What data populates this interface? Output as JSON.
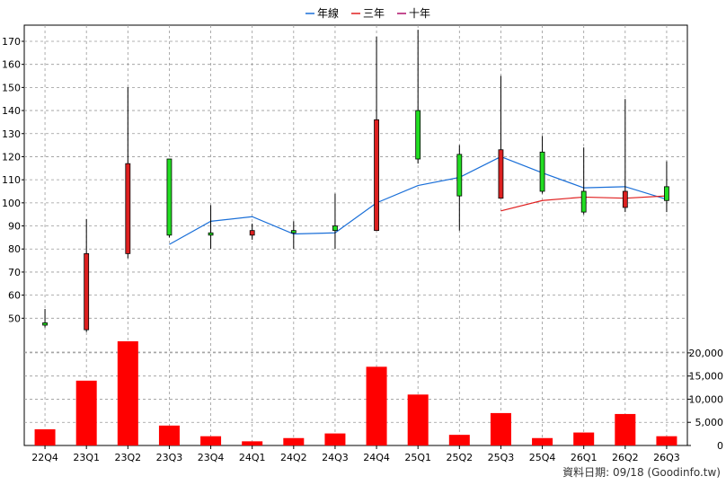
{
  "legend": [
    {
      "label": "年線",
      "color": "#1a6fd8"
    },
    {
      "label": "三年",
      "color": "#e02020"
    },
    {
      "label": "十年",
      "color": "#b0106a"
    }
  ],
  "footer": "資料日期: 09/18 (Goodinfo.tw)",
  "colors": {
    "up": "#22dd22",
    "down": "#dd2020",
    "volume": "#ff0000",
    "grid": "#999999"
  },
  "chart_data": [
    {
      "type": "candlestick",
      "categories": [
        "22Q4",
        "23Q1",
        "23Q2",
        "23Q3",
        "23Q4",
        "24Q1",
        "24Q2",
        "24Q3",
        "24Q4",
        "25Q1",
        "25Q2",
        "25Q3",
        "25Q4",
        "26Q1",
        "26Q2",
        "26Q3"
      ],
      "ylim": [
        40,
        177
      ],
      "yticks": [
        50,
        60,
        70,
        80,
        90,
        100,
        110,
        120,
        130,
        140,
        150,
        160,
        170
      ],
      "ohlc": [
        {
          "open": 47,
          "high": 54,
          "low": 46,
          "close": 48
        },
        {
          "open": 78,
          "high": 93,
          "low": 44,
          "close": 45
        },
        {
          "open": 117,
          "high": 150,
          "low": 76,
          "close": 78
        },
        {
          "open": 86,
          "high": 119,
          "low": 85,
          "close": 119
        },
        {
          "open": 86,
          "high": 99,
          "low": 80,
          "close": 87
        },
        {
          "open": 88,
          "high": 91,
          "low": 84,
          "close": 86
        },
        {
          "open": 87,
          "high": 92,
          "low": 80,
          "close": 88
        },
        {
          "open": 88,
          "high": 104,
          "low": 80,
          "close": 90
        },
        {
          "open": 136,
          "high": 172,
          "low": 88,
          "close": 88
        },
        {
          "open": 119,
          "high": 175,
          "low": 117,
          "close": 140
        },
        {
          "open": 103,
          "high": 125,
          "low": 88,
          "close": 121
        },
        {
          "open": 123,
          "high": 155,
          "low": 102,
          "close": 102
        },
        {
          "open": 105,
          "high": 129,
          "low": 104,
          "close": 122
        },
        {
          "open": 96,
          "high": 124,
          "low": 95,
          "close": 105
        },
        {
          "open": 105,
          "high": 145,
          "low": 96,
          "close": 98
        },
        {
          "open": 101,
          "high": 118,
          "low": 96,
          "close": 107
        }
      ],
      "series": [
        {
          "name": "年線",
          "values": [
            null,
            null,
            null,
            82,
            92,
            94,
            86.5,
            87,
            100,
            107.5,
            111,
            120,
            113,
            106.5,
            107,
            101.5
          ]
        },
        {
          "name": "三年",
          "values": [
            null,
            null,
            null,
            null,
            null,
            null,
            null,
            null,
            null,
            null,
            null,
            96.5,
            101,
            102.5,
            102,
            103
          ]
        },
        {
          "name": "十年",
          "values": [
            null,
            null,
            null,
            null,
            null,
            null,
            null,
            null,
            null,
            null,
            null,
            null,
            null,
            null,
            null,
            null
          ]
        }
      ]
    },
    {
      "type": "bar",
      "categories": [
        "22Q4",
        "23Q1",
        "23Q2",
        "23Q3",
        "23Q4",
        "24Q1",
        "24Q2",
        "24Q3",
        "24Q4",
        "25Q1",
        "25Q2",
        "25Q3",
        "25Q4",
        "26Q1",
        "26Q2",
        "26Q3"
      ],
      "values": [
        3500,
        14000,
        22500,
        4300,
        2000,
        900,
        1600,
        2600,
        17000,
        11000,
        2300,
        7000,
        1600,
        2800,
        6800,
        2000
      ],
      "ylim": [
        0,
        22500
      ],
      "yticks": [
        0,
        5000,
        10000,
        15000,
        20000
      ],
      "ytick_labels": [
        "0",
        "5,000",
        "10,000",
        "15,000",
        "20,000"
      ]
    }
  ]
}
